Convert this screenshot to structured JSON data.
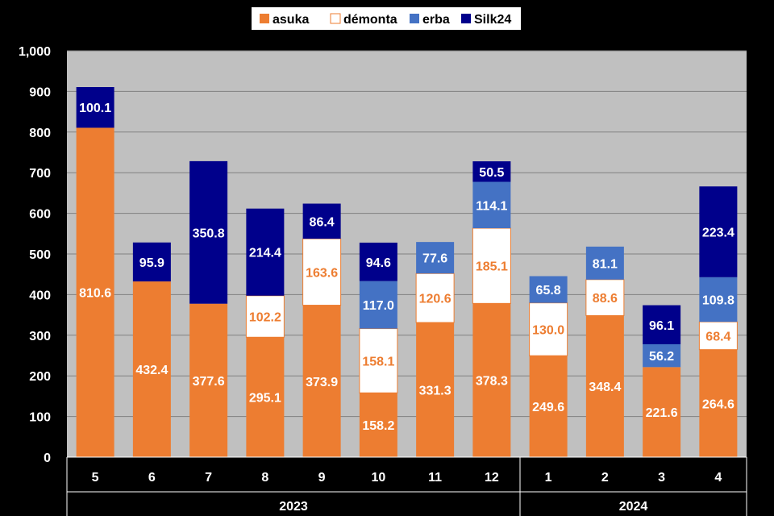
{
  "chart_data": {
    "type": "bar",
    "stacked": true,
    "categories": [
      "5",
      "6",
      "7",
      "8",
      "9",
      "10",
      "11",
      "12",
      "1",
      "2",
      "3",
      "4"
    ],
    "category_groups": [
      {
        "label": "2023",
        "count": 8
      },
      {
        "label": "2024",
        "count": 4
      }
    ],
    "series": [
      {
        "name": "asuka",
        "color": "#ED7D31",
        "values": [
          810.6,
          432.4,
          377.6,
          295.1,
          373.9,
          158.2,
          331.3,
          378.3,
          249.6,
          348.4,
          221.6,
          264.6
        ]
      },
      {
        "name": "démonta",
        "color": "#FFFFFF",
        "label_color": "#ED7D31",
        "values": [
          null,
          null,
          null,
          102.2,
          163.6,
          158.1,
          120.6,
          185.1,
          130.0,
          88.6,
          null,
          68.4
        ]
      },
      {
        "name": "erba",
        "color": "#4472C4",
        "values": [
          null,
          null,
          null,
          null,
          null,
          117.0,
          77.6,
          114.1,
          65.8,
          81.1,
          56.2,
          109.8
        ]
      },
      {
        "name": "Silk24",
        "color": "#00008B",
        "values": [
          100.1,
          95.9,
          350.8,
          214.4,
          86.4,
          94.6,
          null,
          50.5,
          null,
          null,
          96.1,
          223.4
        ]
      }
    ],
    "ylim": [
      0,
      1000
    ],
    "yticks": [
      "0",
      "100",
      "200",
      "300",
      "400",
      "500",
      "600",
      "700",
      "800",
      "900",
      "1,000"
    ],
    "grid": true,
    "legend_position": "top",
    "plot_background": "#C0C0C0",
    "page_background": "#000000"
  }
}
